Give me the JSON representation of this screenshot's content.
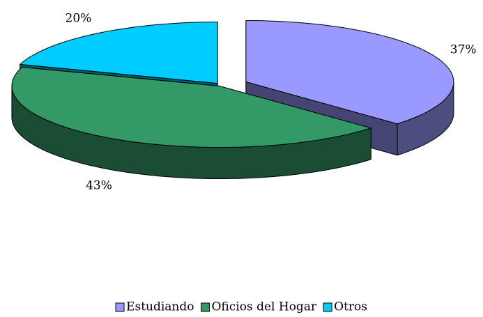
{
  "chart_data": {
    "type": "pie",
    "categories": [
      "Estudiando",
      "Oficios del Hogar",
      "Otros"
    ],
    "values": [
      37,
      43,
      20
    ],
    "value_labels": [
      "37%",
      "43%",
      "20%"
    ],
    "colors": [
      "#9999ff",
      "#339966",
      "#00ccff"
    ],
    "legend": "bottom"
  }
}
